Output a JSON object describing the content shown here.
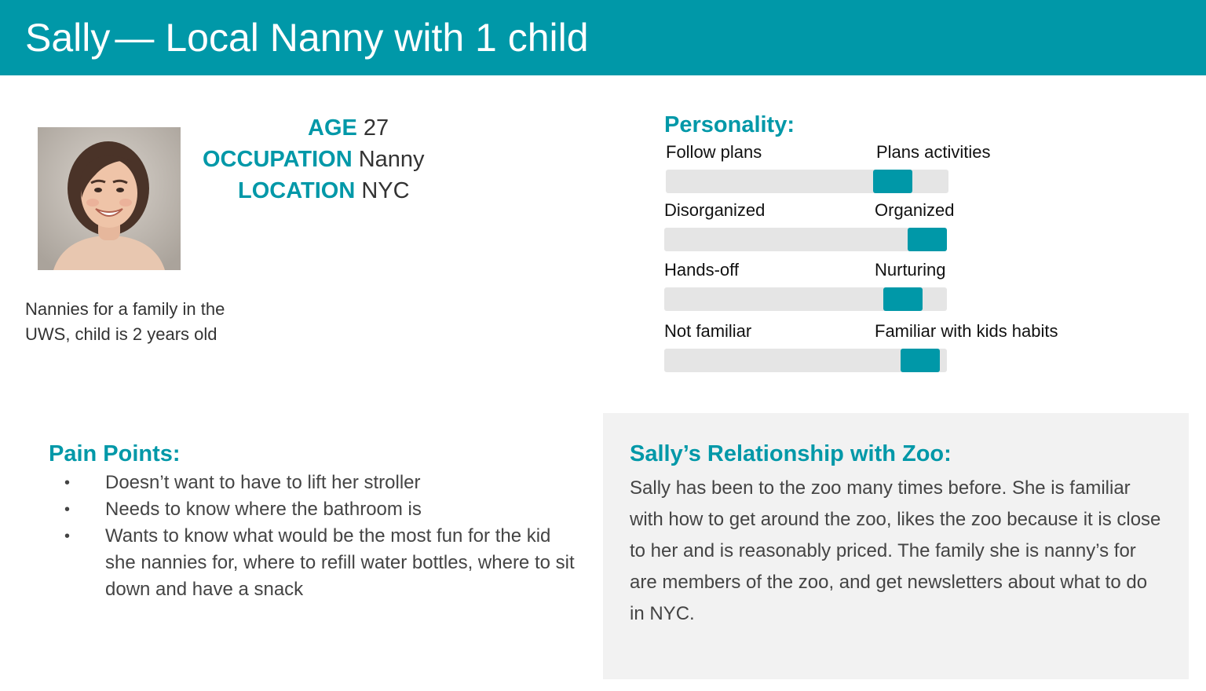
{
  "header": {
    "name": "Sally",
    "separator": "—",
    "subtitle": "Local Nanny with 1 child"
  },
  "profile": {
    "age_label": "AGE",
    "age_value": "27",
    "occupation_label": "OCCUPATION",
    "occupation_value": "Nanny",
    "location_label": "LOCATION",
    "location_value": "NYC",
    "bio": "Nannies for a family in the UWS, child is 2 years old"
  },
  "personality": {
    "heading": "Personality:",
    "accent_color": "#0098a8",
    "traits": [
      {
        "left": "Follow plans",
        "right": "Plans activities",
        "level": 0.85
      },
      {
        "left": "Disorganized",
        "right": "Organized",
        "level": 1.0
      },
      {
        "left": "Hands-off",
        "right": "Nurturing",
        "level": 0.9
      },
      {
        "left": "Not familiar",
        "right": "Familiar with kids habits",
        "level": 0.97
      }
    ]
  },
  "pain_points": {
    "heading": "Pain Points:",
    "bullet": "•",
    "items": [
      "Doesn’t want to have to lift her stroller",
      "Needs to know where the bathroom is",
      "Wants to know what would be the most fun for the kid she nannies for, where to refill water bottles, where to sit down and have a snack"
    ]
  },
  "relationship": {
    "heading": "Sally’s Relationship with Zoo:",
    "text": "Sally has been to the zoo many times before. She is familiar with how to get around the zoo, likes the zoo because it is close to her and is reasonably priced. The family she is nanny’s for are members of the zoo, and get newsletters about what to do in NYC."
  },
  "icons": {
    "photo": "person-portrait-icon"
  }
}
